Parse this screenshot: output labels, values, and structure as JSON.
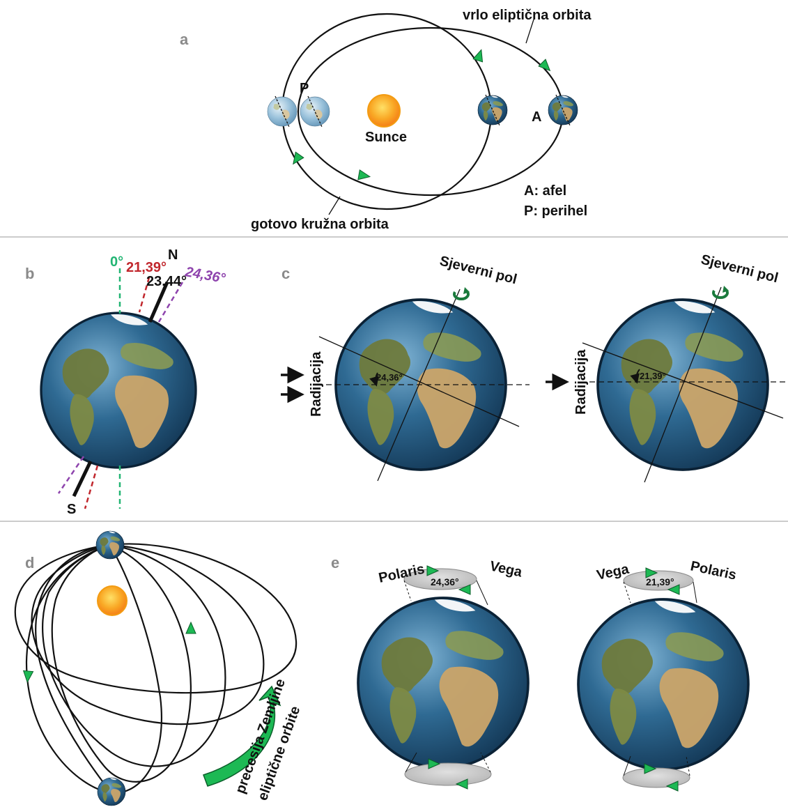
{
  "panels": {
    "a": "a",
    "b": "b",
    "c": "c",
    "d": "d",
    "e": "e"
  },
  "panel_a": {
    "very_elliptical_label": "vrlo eliptična orbita",
    "near_circular_label": "gotovo kružna orbita",
    "perihelion_marker": "P",
    "aphelion_marker": "A",
    "sun_label": "Sunce",
    "legend_afel": "A: afel",
    "legend_perihel": "P: perihel"
  },
  "panel_b": {
    "north": "N",
    "south": "S",
    "angle_0": "0°",
    "angle_2139": "21,39°",
    "angle_2344": "23,44°",
    "angle_2436": "24,36°"
  },
  "panel_c": {
    "north_pole_label_1": "Sjeverni pol",
    "north_pole_label_2": "Sjeverni pol",
    "radiation_label_1": "Radijacija",
    "radiation_label_2": "Radijacija",
    "angle_1": "24,36°",
    "angle_2": "21,39°"
  },
  "panel_d": {
    "precession_line1": "precesija Zemljine",
    "precession_line2": "eliptične orbite"
  },
  "panel_e": {
    "left_star_a": "Polaris",
    "left_star_b": "Vega",
    "left_angle": "24,36°",
    "right_star_a": "Vega",
    "right_star_b": "Polaris",
    "right_angle": "21,39°"
  },
  "colors": {
    "green_line": "#22b573",
    "red_line": "#c1272d",
    "purple_line": "#8e44ad",
    "arrow_green": "#1db954",
    "ocean": "#2a5c86",
    "land": "#b89a63",
    "sun": "#f7a81b"
  },
  "icons": [
    "earth-globe-icon",
    "sun-icon",
    "orbit-direction-arrow-icon",
    "rotation-arrow-icon",
    "radiation-arrow-icon"
  ]
}
